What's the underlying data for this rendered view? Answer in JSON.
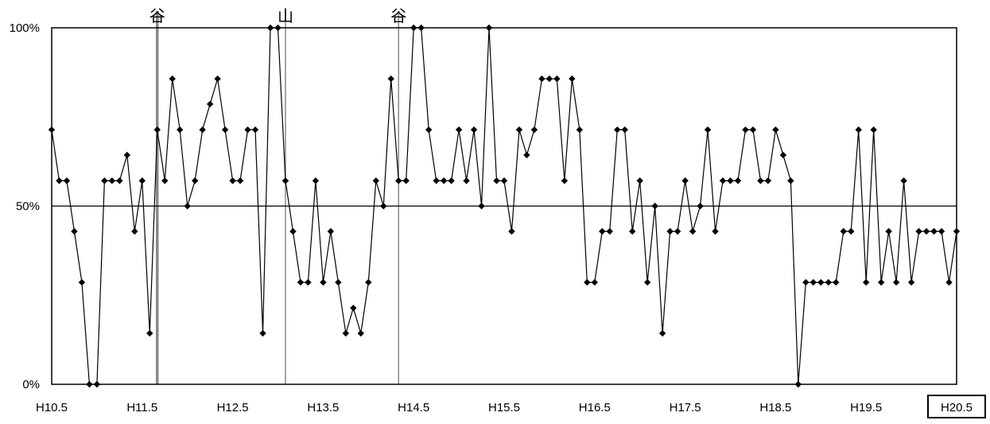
{
  "chart_data": {
    "type": "line",
    "title": "",
    "xlabel": "",
    "ylabel": "",
    "ylim": [
      0,
      100
    ],
    "y_ticks": [
      "0%",
      "50%",
      "100%"
    ],
    "x_ticks": [
      "H10.5",
      "H11.5",
      "H12.5",
      "H13.5",
      "H14.5",
      "H15.5",
      "H16.5",
      "H17.5",
      "H18.5",
      "H19.5",
      "H20.5"
    ],
    "x_start": "H10.5",
    "boxed_tick": "H20.5",
    "grid": "horizontal line at 50%",
    "markers": [
      {
        "label": "谷",
        "month_index": 14
      },
      {
        "label": "山",
        "month_index": 31
      },
      {
        "label": "谷",
        "month_index": 46
      }
    ],
    "series": [
      {
        "marker": "diamond",
        "color": "#000000",
        "values": [
          71.4,
          57.1,
          57.1,
          42.9,
          28.6,
          0,
          0,
          57.1,
          57.1,
          57.1,
          64.3,
          42.9,
          57.1,
          14.3,
          71.4,
          57.1,
          85.7,
          71.4,
          50,
          57.1,
          71.4,
          78.6,
          85.7,
          71.4,
          57.1,
          57.1,
          71.4,
          71.4,
          14.3,
          100,
          100,
          57.1,
          42.9,
          28.6,
          28.6,
          57.1,
          28.6,
          42.9,
          28.6,
          14.3,
          21.4,
          14.3,
          28.6,
          57.1,
          50,
          85.7,
          57.1,
          57.1,
          100,
          100,
          71.4,
          57.1,
          57.1,
          57.1,
          71.4,
          57.1,
          71.4,
          50,
          100,
          57.1,
          57.1,
          42.9,
          71.4,
          64.3,
          71.4,
          85.7,
          85.7,
          85.7,
          57.1,
          85.7,
          71.4,
          28.6,
          28.6,
          42.9,
          42.9,
          71.4,
          71.4,
          42.9,
          57.1,
          28.6,
          50,
          14.3,
          42.9,
          42.9,
          57.1,
          42.9,
          50,
          71.4,
          42.9,
          57.1,
          57.1,
          57.1,
          71.4,
          71.4,
          57.1,
          57.1,
          71.4,
          64.3,
          57.1,
          0,
          28.6,
          28.6,
          28.6,
          28.6,
          28.6,
          42.9,
          42.9,
          71.4,
          28.6,
          71.4,
          28.6,
          42.9,
          28.6,
          57.1,
          28.6,
          42.9,
          42.9,
          42.9,
          42.9,
          28.6,
          42.9
        ]
      }
    ]
  }
}
